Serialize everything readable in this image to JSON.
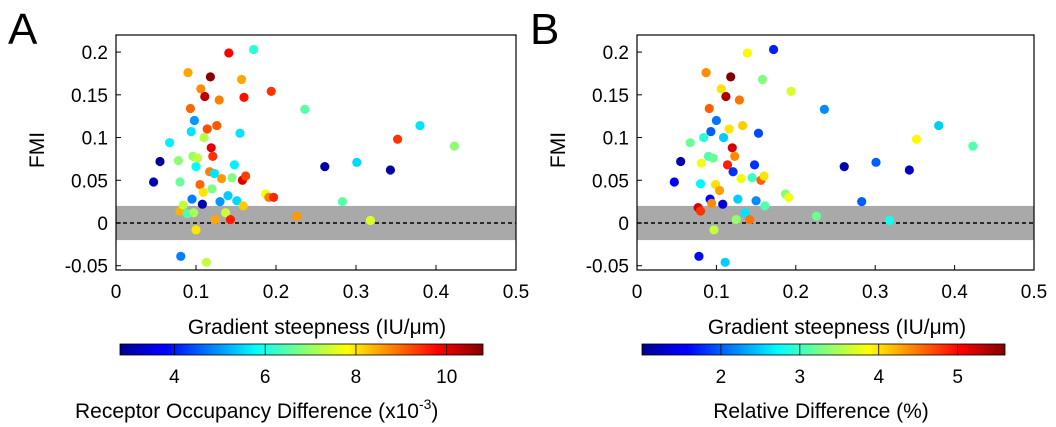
{
  "chart_data": [
    {
      "type": "scatter",
      "panel_label": "A",
      "xlabel": "Gradient steepness (IU/μm)",
      "ylabel": "FMI",
      "xlim": [
        0,
        0.5
      ],
      "ylim": [
        -0.055,
        0.22
      ],
      "xticks": [
        "0",
        "0.1",
        "0.2",
        "0.3",
        "0.4",
        "0.5"
      ],
      "yticks": [
        "-0.05",
        "0",
        "0.05",
        "0.1",
        "0.15",
        "0.2"
      ],
      "shaded_band": [
        -0.02,
        0.02
      ],
      "reference_line_y": 0,
      "colorbar": {
        "colormap": "jet",
        "label_main": "Receptor Occupancy Difference (x10",
        "label_sup": "-3",
        "label_close": ")",
        "range": [
          2.8,
          10.8
        ],
        "ticks": [
          "4",
          "6",
          "8",
          "10"
        ]
      },
      "points": [
        {
          "x": 0.047,
          "y": 0.048,
          "c": 3.2
        },
        {
          "x": 0.055,
          "y": 0.072,
          "c": 3.0
        },
        {
          "x": 0.067,
          "y": 0.094,
          "c": 5.7
        },
        {
          "x": 0.078,
          "y": 0.073,
          "c": 6.9
        },
        {
          "x": 0.08,
          "y": 0.048,
          "c": 6.6
        },
        {
          "x": 0.08,
          "y": 0.014,
          "c": 8.4
        },
        {
          "x": 0.081,
          "y": -0.039,
          "c": 4.8
        },
        {
          "x": 0.084,
          "y": 0.021,
          "c": 7.3
        },
        {
          "x": 0.089,
          "y": 0.011,
          "c": 6.4
        },
        {
          "x": 0.09,
          "y": 0.176,
          "c": 8.5
        },
        {
          "x": 0.093,
          "y": 0.134,
          "c": 9.0
        },
        {
          "x": 0.094,
          "y": 0.107,
          "c": 5.6
        },
        {
          "x": 0.095,
          "y": 0.028,
          "c": 4.8
        },
        {
          "x": 0.096,
          "y": 0.078,
          "c": 7.0
        },
        {
          "x": 0.097,
          "y": 0.012,
          "c": 7.1
        },
        {
          "x": 0.098,
          "y": 0.12,
          "c": 5.0
        },
        {
          "x": 0.1,
          "y": 0.066,
          "c": 5.8
        },
        {
          "x": 0.1,
          "y": -0.008,
          "c": 8.0
        },
        {
          "x": 0.102,
          "y": 0.076,
          "c": 7.3
        },
        {
          "x": 0.105,
          "y": 0.045,
          "c": 9.0
        },
        {
          "x": 0.106,
          "y": 0.157,
          "c": 8.7
        },
        {
          "x": 0.108,
          "y": 0.022,
          "c": 3.2
        },
        {
          "x": 0.109,
          "y": 0.036,
          "c": 8.0
        },
        {
          "x": 0.11,
          "y": 0.1,
          "c": 7.2
        },
        {
          "x": 0.111,
          "y": 0.148,
          "c": 10.3
        },
        {
          "x": 0.113,
          "y": -0.046,
          "c": 7.3
        },
        {
          "x": 0.114,
          "y": 0.11,
          "c": 9.2
        },
        {
          "x": 0.117,
          "y": 0.06,
          "c": 8.8
        },
        {
          "x": 0.118,
          "y": 0.171,
          "c": 10.7
        },
        {
          "x": 0.119,
          "y": 0.088,
          "c": 10.0
        },
        {
          "x": 0.12,
          "y": 0.04,
          "c": 6.8
        },
        {
          "x": 0.121,
          "y": 0.078,
          "c": 9.4
        },
        {
          "x": 0.123,
          "y": 0.058,
          "c": 5.6
        },
        {
          "x": 0.124,
          "y": 0.004,
          "c": 8.5
        },
        {
          "x": 0.126,
          "y": 0.114,
          "c": 9.1
        },
        {
          "x": 0.129,
          "y": 0.144,
          "c": 8.8
        },
        {
          "x": 0.13,
          "y": 0.025,
          "c": 5.0
        },
        {
          "x": 0.132,
          "y": 0.052,
          "c": 8.6
        },
        {
          "x": 0.137,
          "y": 0.012,
          "c": 7.4
        },
        {
          "x": 0.14,
          "y": 0.032,
          "c": 5.4
        },
        {
          "x": 0.141,
          "y": 0.199,
          "c": 9.8
        },
        {
          "x": 0.143,
          "y": 0.004,
          "c": 9.6
        },
        {
          "x": 0.145,
          "y": 0.053,
          "c": 6.8
        },
        {
          "x": 0.148,
          "y": 0.068,
          "c": 5.7
        },
        {
          "x": 0.151,
          "y": 0.026,
          "c": 5.5
        },
        {
          "x": 0.155,
          "y": 0.105,
          "c": 5.6
        },
        {
          "x": 0.157,
          "y": 0.168,
          "c": 8.5
        },
        {
          "x": 0.158,
          "y": 0.05,
          "c": 10.1
        },
        {
          "x": 0.159,
          "y": 0.02,
          "c": 8.2
        },
        {
          "x": 0.16,
          "y": 0.147,
          "c": 9.7
        },
        {
          "x": 0.162,
          "y": 0.055,
          "c": 9.3
        },
        {
          "x": 0.172,
          "y": 0.203,
          "c": 6.1
        },
        {
          "x": 0.187,
          "y": 0.034,
          "c": 7.7
        },
        {
          "x": 0.191,
          "y": 0.03,
          "c": 8.8
        },
        {
          "x": 0.194,
          "y": 0.154,
          "c": 9.4
        },
        {
          "x": 0.197,
          "y": 0.03,
          "c": 9.5
        },
        {
          "x": 0.226,
          "y": 0.008,
          "c": 8.6
        },
        {
          "x": 0.236,
          "y": 0.133,
          "c": 6.5
        },
        {
          "x": 0.261,
          "y": 0.066,
          "c": 3.1
        },
        {
          "x": 0.283,
          "y": 0.025,
          "c": 6.5
        },
        {
          "x": 0.301,
          "y": 0.071,
          "c": 5.5
        },
        {
          "x": 0.318,
          "y": 0.003,
          "c": 7.5
        },
        {
          "x": 0.343,
          "y": 0.062,
          "c": 3.1
        },
        {
          "x": 0.352,
          "y": 0.098,
          "c": 9.4
        },
        {
          "x": 0.38,
          "y": 0.114,
          "c": 5.6
        },
        {
          "x": 0.423,
          "y": 0.09,
          "c": 6.9
        }
      ]
    },
    {
      "type": "scatter",
      "panel_label": "B",
      "xlabel": "Gradient steepness (IU/μm)",
      "ylabel": "FMI",
      "xlim": [
        0,
        0.5
      ],
      "ylim": [
        -0.055,
        0.22
      ],
      "xticks": [
        "0",
        "0.1",
        "0.2",
        "0.3",
        "0.4",
        "0.5"
      ],
      "yticks": [
        "-0.05",
        "0",
        "0.05",
        "0.1",
        "0.15",
        "0.2"
      ],
      "shaded_band": [
        -0.02,
        0.02
      ],
      "reference_line_y": 0,
      "colorbar": {
        "colormap": "jet",
        "label_main": "Relative Difference (%)",
        "label_sup": "",
        "label_close": "",
        "range": [
          1.0,
          5.6
        ],
        "ticks": [
          "2",
          "3",
          "4",
          "5"
        ]
      },
      "points": [
        {
          "x": 0.047,
          "y": 0.048,
          "c": 1.5
        },
        {
          "x": 0.055,
          "y": 0.072,
          "c": 1.2
        },
        {
          "x": 0.067,
          "y": 0.094,
          "c": 3.2
        },
        {
          "x": 0.077,
          "y": 0.018,
          "c": 5.2
        },
        {
          "x": 0.078,
          "y": -0.039,
          "c": 1.6
        },
        {
          "x": 0.08,
          "y": 0.046,
          "c": 2.7
        },
        {
          "x": 0.08,
          "y": 0.014,
          "c": 4.8
        },
        {
          "x": 0.081,
          "y": 0.07,
          "c": 3.8
        },
        {
          "x": 0.084,
          "y": 0.1,
          "c": 2.9
        },
        {
          "x": 0.087,
          "y": 0.176,
          "c": 4.4
        },
        {
          "x": 0.09,
          "y": 0.078,
          "c": 3.1
        },
        {
          "x": 0.091,
          "y": 0.134,
          "c": 4.6
        },
        {
          "x": 0.092,
          "y": 0.028,
          "c": 1.6
        },
        {
          "x": 0.093,
          "y": 0.107,
          "c": 2.0
        },
        {
          "x": 0.094,
          "y": 0.023,
          "c": 4.4
        },
        {
          "x": 0.096,
          "y": 0.076,
          "c": 3.2
        },
        {
          "x": 0.097,
          "y": -0.008,
          "c": 3.6
        },
        {
          "x": 0.099,
          "y": 0.045,
          "c": 4.0
        },
        {
          "x": 0.1,
          "y": 0.12,
          "c": 2.1
        },
        {
          "x": 0.104,
          "y": 0.038,
          "c": 4.3
        },
        {
          "x": 0.106,
          "y": 0.157,
          "c": 4.0
        },
        {
          "x": 0.108,
          "y": 0.022,
          "c": 1.4
        },
        {
          "x": 0.109,
          "y": 0.1,
          "c": 2.5
        },
        {
          "x": 0.111,
          "y": -0.046,
          "c": 2.5
        },
        {
          "x": 0.112,
          "y": 0.148,
          "c": 5.4
        },
        {
          "x": 0.114,
          "y": 0.068,
          "c": 4.9
        },
        {
          "x": 0.116,
          "y": 0.11,
          "c": 4.0
        },
        {
          "x": 0.118,
          "y": 0.171,
          "c": 5.6
        },
        {
          "x": 0.12,
          "y": 0.088,
          "c": 5.2
        },
        {
          "x": 0.121,
          "y": 0.06,
          "c": 1.8
        },
        {
          "x": 0.123,
          "y": 0.078,
          "c": 4.4
        },
        {
          "x": 0.125,
          "y": 0.004,
          "c": 3.4
        },
        {
          "x": 0.127,
          "y": 0.028,
          "c": 2.5
        },
        {
          "x": 0.129,
          "y": 0.144,
          "c": 4.5
        },
        {
          "x": 0.131,
          "y": 0.052,
          "c": 3.8
        },
        {
          "x": 0.133,
          "y": 0.114,
          "c": 4.1
        },
        {
          "x": 0.136,
          "y": 0.012,
          "c": 2.6
        },
        {
          "x": 0.139,
          "y": 0.199,
          "c": 3.9
        },
        {
          "x": 0.142,
          "y": 0.004,
          "c": 4.5
        },
        {
          "x": 0.145,
          "y": 0.053,
          "c": 3.0
        },
        {
          "x": 0.148,
          "y": 0.068,
          "c": 1.8
        },
        {
          "x": 0.15,
          "y": 0.026,
          "c": 2.2
        },
        {
          "x": 0.153,
          "y": 0.105,
          "c": 1.9
        },
        {
          "x": 0.156,
          "y": 0.05,
          "c": 4.6
        },
        {
          "x": 0.158,
          "y": 0.168,
          "c": 3.3
        },
        {
          "x": 0.16,
          "y": 0.055,
          "c": 4.0
        },
        {
          "x": 0.161,
          "y": 0.02,
          "c": 3.1
        },
        {
          "x": 0.172,
          "y": 0.203,
          "c": 1.7
        },
        {
          "x": 0.187,
          "y": 0.034,
          "c": 3.3
        },
        {
          "x": 0.191,
          "y": 0.03,
          "c": 3.8
        },
        {
          "x": 0.194,
          "y": 0.154,
          "c": 3.7
        },
        {
          "x": 0.226,
          "y": 0.008,
          "c": 3.2
        },
        {
          "x": 0.236,
          "y": 0.133,
          "c": 2.2
        },
        {
          "x": 0.261,
          "y": 0.066,
          "c": 1.2
        },
        {
          "x": 0.283,
          "y": 0.025,
          "c": 2.0
        },
        {
          "x": 0.301,
          "y": 0.071,
          "c": 2.0
        },
        {
          "x": 0.318,
          "y": 0.003,
          "c": 2.8
        },
        {
          "x": 0.343,
          "y": 0.062,
          "c": 1.3
        },
        {
          "x": 0.352,
          "y": 0.098,
          "c": 3.9
        },
        {
          "x": 0.38,
          "y": 0.114,
          "c": 2.5
        },
        {
          "x": 0.423,
          "y": 0.09,
          "c": 3.1
        }
      ]
    }
  ]
}
